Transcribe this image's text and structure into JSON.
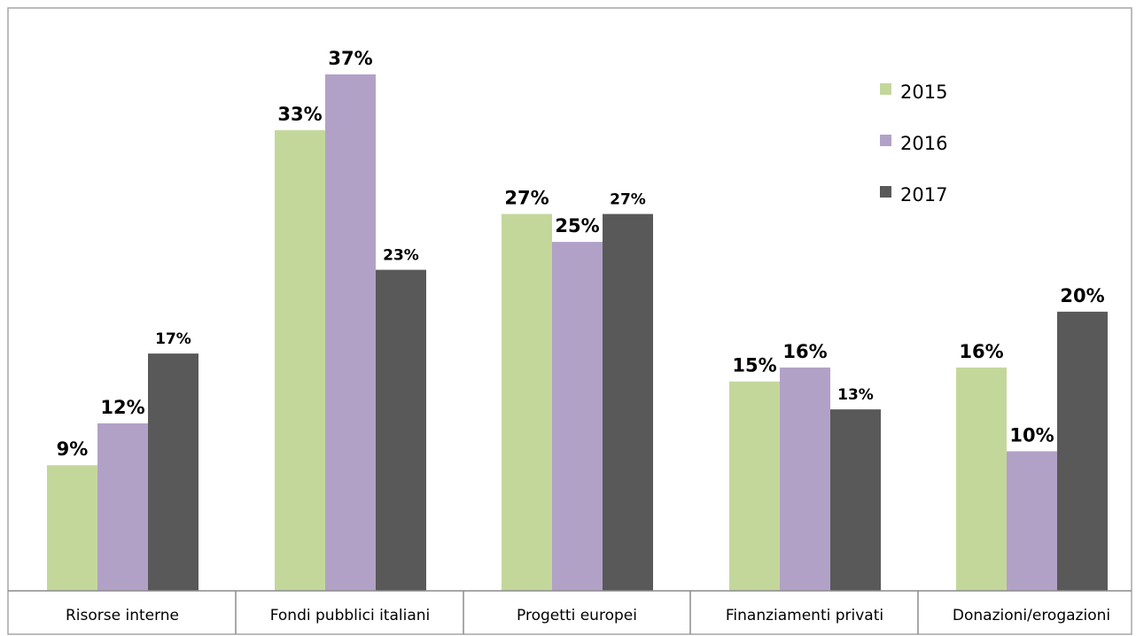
{
  "chart_data": {
    "type": "bar",
    "title": "",
    "xlabel": "",
    "ylabel": "",
    "categories": [
      "Risorse interne",
      "Fondi pubblici italiani",
      "Progetti europei",
      "Finanziamenti privati",
      "Donazioni/erogazioni"
    ],
    "series": [
      {
        "name": "2015",
        "color": "#c4d79b",
        "values": [
          9,
          33,
          27,
          15,
          16
        ],
        "labels": [
          "9%",
          "33%",
          "27%",
          "15%",
          "16%"
        ]
      },
      {
        "name": "2016",
        "color": "#b2a1c7",
        "values": [
          12,
          37,
          25,
          16,
          10
        ],
        "labels": [
          "12%",
          "37%",
          "25%",
          "16%",
          "10%"
        ]
      },
      {
        "name": "2017",
        "color": "#595959",
        "values": [
          17,
          23,
          27,
          13,
          20
        ],
        "labels": [
          "17%",
          "23%",
          "27%",
          "13%",
          "20%"
        ]
      }
    ],
    "ylim": [
      0,
      37
    ],
    "unit": "%",
    "grid": false,
    "legend_position": "top-right"
  }
}
